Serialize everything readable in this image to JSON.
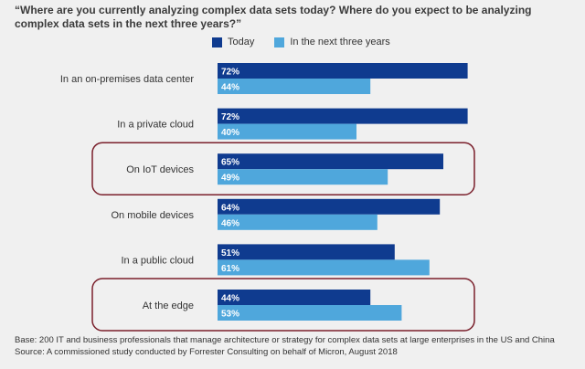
{
  "colors": {
    "today": "#0f3b8f",
    "future": "#4fa7dc",
    "highlight": "#7a1f2b",
    "label_text": "#ffffff",
    "category_text": "#333333"
  },
  "legend": {
    "today": "Today",
    "future": "In the next three years"
  },
  "chart_data": {
    "type": "bar",
    "orientation": "horizontal",
    "title": "“Where are you currently analyzing complex data sets today? Where do you expect to be analyzing complex data sets in the next three years?”",
    "categories": [
      "In an on-premises data center",
      "In a private cloud",
      "On IoT devices",
      "On mobile devices",
      "In a public cloud",
      "At the edge"
    ],
    "series": [
      {
        "name": "Today",
        "values": [
          72,
          72,
          65,
          64,
          51,
          44
        ]
      },
      {
        "name": "In the next three years",
        "values": [
          44,
          40,
          49,
          46,
          61,
          53
        ]
      }
    ],
    "value_suffix": "%",
    "highlighted_categories": [
      "On IoT devices",
      "At the edge"
    ],
    "xlim": [
      0,
      100
    ]
  },
  "footer": {
    "base": "Base: 200 IT and business professionals that manage architecture or strategy for complex data sets at large enterprises in the US and China",
    "source": "Source: A commissioned study conducted by Forrester Consulting on behalf of Micron, August 2018"
  }
}
